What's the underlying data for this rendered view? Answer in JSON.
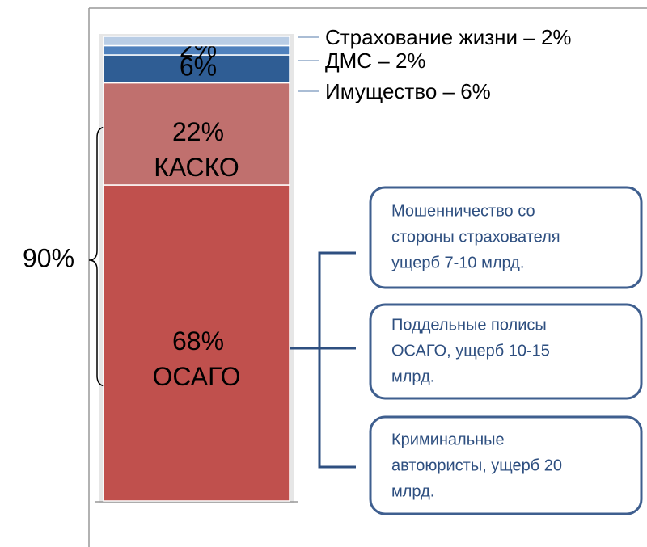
{
  "chart_data": {
    "type": "stacked-bar",
    "ylim": [
      0,
      100
    ],
    "series": [
      {
        "name": "ОСАГО",
        "color": "#c0504d",
        "values": [
          68
        ],
        "value_labels": [
          "68%"
        ],
        "label_position": "inside"
      },
      {
        "name": "КАСКО",
        "color": "#c0706e",
        "values": [
          22
        ],
        "value_labels": [
          "22%"
        ],
        "label_position": "inside"
      },
      {
        "name": "Имущество – 6%",
        "color": "#2f5d94",
        "values": [
          6
        ],
        "value_labels": [
          "6%"
        ],
        "label_position": "legend"
      },
      {
        "name": "ДМС – 2%",
        "color": "#4f81bd",
        "values": [
          2
        ],
        "value_labels": [
          "2%"
        ],
        "label_position": "legend"
      },
      {
        "name": "Страхование жизни – 2%",
        "color": "#b9cde5",
        "values": [
          2
        ],
        "label_position": "legend"
      }
    ],
    "bracket_label": "90%",
    "boxes": [
      [
        "Мошенничество со",
        "стороны страхователя",
        "ущерб 7-10 млрд."
      ],
      [
        "Поддельные полисы",
        "ОСАГО, ущерб 10-15",
        "млрд."
      ],
      [
        "Криминальные",
        "автоюристы, ущерб 20",
        "млрд."
      ]
    ]
  }
}
